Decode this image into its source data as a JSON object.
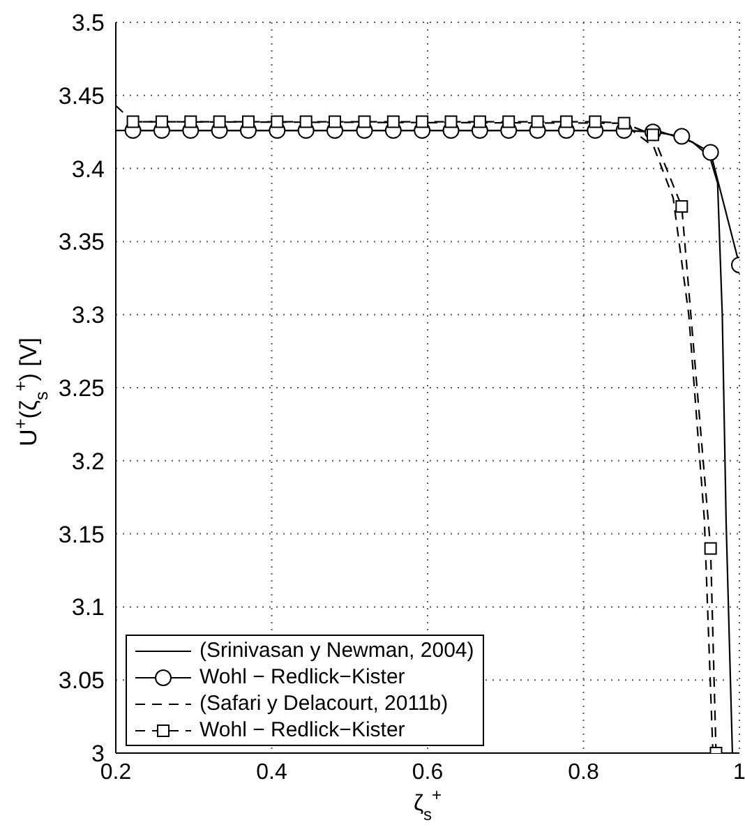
{
  "chart_data": {
    "type": "line",
    "xlabel": "ζ$_{s}$$^{+}$",
    "ylabel": "U$^{+}$(ζ$_{s}$$^{+}$)  [V]",
    "xlim": [
      0.2,
      1
    ],
    "xticks": [
      0.2,
      0.4,
      0.6,
      0.8,
      1
    ],
    "ylim": [
      3,
      3.5
    ],
    "yticks": [
      3,
      3.05,
      3.1,
      3.15,
      3.2,
      3.25,
      3.3,
      3.35,
      3.4,
      3.45,
      3.5
    ],
    "grid": true,
    "legend": "bottom left",
    "series": [
      {
        "name": "(Srinivasan y Newman, 2004)",
        "color": "#000000",
        "line_style": "solid",
        "marker": "none",
        "x": [
          0.2,
          0.85,
          0.9,
          0.94,
          0.962,
          0.972,
          0.978,
          0.983,
          0.991
        ],
        "values": [
          3.426,
          3.426,
          3.425,
          3.418,
          3.408,
          3.39,
          3.3,
          3.157,
          3.0
        ]
      },
      {
        "name": "Wohl − Redlick−Kister",
        "color": "#000000",
        "line_style": "solid",
        "marker": "circle",
        "x": [
          0.222,
          0.259,
          0.296,
          0.333,
          0.37,
          0.407,
          0.444,
          0.481,
          0.519,
          0.556,
          0.593,
          0.63,
          0.667,
          0.704,
          0.741,
          0.778,
          0.815,
          0.852,
          0.889,
          0.926,
          0.963,
          1.0
        ],
        "values": [
          3.426,
          3.426,
          3.426,
          3.426,
          3.426,
          3.426,
          3.426,
          3.426,
          3.426,
          3.426,
          3.426,
          3.426,
          3.426,
          3.426,
          3.426,
          3.426,
          3.426,
          3.426,
          3.425,
          3.422,
          3.411,
          3.334
        ]
      },
      {
        "name": "(Safari y Delacourt, 2011b)",
        "color": "#000000",
        "line_style": "dashed",
        "marker": "none",
        "x": [
          0.2,
          0.222,
          0.85,
          0.89,
          0.915,
          0.935,
          0.955,
          0.966
        ],
        "values": [
          3.443,
          3.432,
          3.431,
          3.415,
          3.38,
          3.3,
          3.16,
          3.0
        ]
      },
      {
        "name": "Wohl − Redlick−Kister",
        "color": "#000000",
        "line_style": "dashed",
        "marker": "square",
        "x": [
          0.222,
          0.259,
          0.296,
          0.333,
          0.37,
          0.407,
          0.444,
          0.481,
          0.519,
          0.556,
          0.593,
          0.63,
          0.667,
          0.704,
          0.741,
          0.778,
          0.815,
          0.852,
          0.889,
          0.926,
          0.963,
          0.97
        ],
        "values": [
          3.432,
          3.432,
          3.432,
          3.432,
          3.432,
          3.432,
          3.432,
          3.432,
          3.432,
          3.432,
          3.432,
          3.432,
          3.432,
          3.432,
          3.432,
          3.432,
          3.432,
          3.431,
          3.423,
          3.374,
          3.14,
          3.0
        ]
      }
    ]
  }
}
